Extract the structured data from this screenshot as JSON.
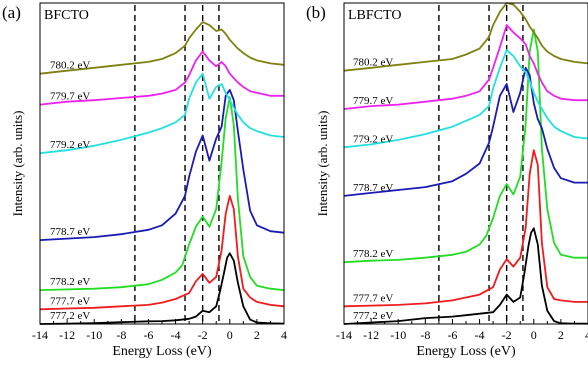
{
  "chart_data": [
    {
      "type": "line",
      "panel_letter": "(a)",
      "sample": "BFCTO",
      "xlabel": "Energy Loss (eV)",
      "ylabel": "Intensity (arb. units)",
      "xlim": [
        -14,
        4
      ],
      "xticks": [
        -14,
        -12,
        -10,
        -8,
        -6,
        -4,
        -2,
        0,
        2,
        4
      ],
      "grid": false,
      "dashed_lines_x": [
        -7.0,
        -3.3,
        -2.0,
        -0.8
      ],
      "series": [
        {
          "name": "777.2 eV",
          "color": "#000000",
          "baseline": 0.0,
          "x": [
            -14,
            -12,
            -10,
            -8,
            -6,
            -5,
            -4,
            -3,
            -2.5,
            -2,
            -1.5,
            -1,
            -0.7,
            -0.4,
            -0.2,
            0,
            0.3,
            0.6,
            1,
            1.5,
            2,
            3,
            4
          ],
          "y": [
            0,
            0.02,
            0.06,
            0.12,
            0.18,
            0.2,
            0.25,
            0.35,
            0.5,
            0.9,
            0.8,
            1.2,
            2.3,
            3.6,
            4.5,
            4.8,
            4.3,
            2.8,
            1.2,
            0.3,
            0.1,
            0.05,
            0.03
          ]
        },
        {
          "name": "777.7 eV",
          "color": "#ee1c1c",
          "baseline": 1.0,
          "x": [
            -14,
            -12,
            -10,
            -8,
            -6,
            -5,
            -4,
            -3,
            -2.5,
            -2,
            -1.5,
            -1,
            -0.6,
            -0.3,
            0,
            0.3,
            0.6,
            1,
            1.5,
            2,
            3,
            4
          ],
          "y": [
            0,
            0.05,
            0.1,
            0.2,
            0.3,
            0.45,
            0.7,
            1.1,
            1.9,
            2.4,
            1.8,
            2.2,
            4,
            6.5,
            7.7,
            6.8,
            3.6,
            1.4,
            0.8,
            0.5,
            0.3,
            0.2
          ]
        },
        {
          "name": "778.2 eV",
          "color": "#22dd22",
          "baseline": 2.0,
          "x": [
            -14,
            -12,
            -10,
            -8,
            -6,
            -5,
            -4,
            -3.5,
            -3,
            -2.5,
            -2,
            -1.5,
            -1,
            -0.6,
            -0.3,
            0,
            0.3,
            0.6,
            1,
            1.5,
            2,
            3,
            4
          ],
          "y": [
            0.3,
            0.35,
            0.4,
            0.5,
            0.7,
            1,
            1.5,
            2,
            3.4,
            4.6,
            5.3,
            4.6,
            5.8,
            9,
            12,
            13.4,
            11.5,
            6.5,
            2.6,
            1.2,
            0.6,
            0.4,
            0.3
          ]
        },
        {
          "name": "778.7 eV",
          "color": "#1a1ab4",
          "baseline": 5.7,
          "x": [
            -14,
            -12,
            -10,
            -8,
            -6,
            -5,
            -4,
            -3.3,
            -3,
            -2.5,
            -2,
            -1.5,
            -1,
            -0.6,
            -0.3,
            0,
            0.3,
            0.6,
            1,
            1.5,
            2,
            3,
            4
          ],
          "y": [
            0,
            0.1,
            0.2,
            0.4,
            0.7,
            1,
            1.8,
            3,
            4.3,
            6,
            7.1,
            5.4,
            6.9,
            7.7,
            9.8,
            10.2,
            9.5,
            7.4,
            4.8,
            2,
            1,
            0.6,
            0.5
          ]
        },
        {
          "name": "779.2 eV",
          "color": "#22e0e0",
          "baseline": 11.6,
          "x": [
            -14,
            -12,
            -10,
            -8,
            -6,
            -5,
            -4,
            -3.3,
            -3,
            -2.5,
            -2,
            -1.5,
            -1,
            -0.6,
            -0.3,
            0,
            0.3,
            0.6,
            1,
            1.5,
            2,
            3,
            4
          ],
          "y": [
            0,
            0.2,
            0.5,
            0.9,
            1.4,
            1.7,
            2.1,
            2.6,
            3.7,
            4.8,
            5.4,
            3.7,
            4.5,
            4.7,
            4.1,
            3.6,
            3.1,
            2.6,
            2.1,
            1.7,
            1.5,
            1.2,
            1.1
          ]
        },
        {
          "name": "779.7 eV",
          "color": "#ee22ee",
          "baseline": 14.9,
          "x": [
            -14,
            -12,
            -10,
            -8,
            -6,
            -5,
            -4,
            -3.3,
            -3,
            -2.5,
            -2,
            -1.5,
            -1,
            -0.6,
            -0.3,
            0,
            0.3,
            0.6,
            1,
            1.5,
            2,
            3,
            4
          ],
          "y": [
            0,
            0.2,
            0.3,
            0.45,
            0.6,
            0.75,
            1,
            1.5,
            2,
            3,
            3.6,
            3,
            2.6,
            2.9,
            2.6,
            2.1,
            1.8,
            1.5,
            1.2,
            0.9,
            0.8,
            0.6,
            0.6
          ]
        },
        {
          "name": "780.2 eV",
          "color": "#808010",
          "baseline": 17.0,
          "x": [
            -14,
            -12,
            -10,
            -8,
            -6,
            -5,
            -4,
            -3.3,
            -3,
            -2.5,
            -2,
            -1.5,
            -1,
            -0.6,
            -0.3,
            0,
            0.3,
            0.6,
            1,
            1.5,
            2,
            3,
            4
          ],
          "y": [
            0,
            0.2,
            0.4,
            0.6,
            0.8,
            1,
            1.4,
            1.9,
            2.4,
            3,
            3.5,
            3.3,
            2.9,
            3,
            2.7,
            2.3,
            2,
            1.7,
            1.4,
            1.1,
            0.9,
            0.7,
            0.6
          ]
        }
      ]
    },
    {
      "type": "line",
      "panel_letter": "(b)",
      "sample": "LBFCTO",
      "xlabel": "Energy Loss (eV)",
      "ylabel": "Intensity (arb. units)",
      "xlim": [
        -14,
        4
      ],
      "xticks": [
        -14,
        -12,
        -10,
        -8,
        -6,
        -4,
        -2,
        0,
        2,
        4
      ],
      "grid": false,
      "dashed_lines_x": [
        -7.0,
        -3.3,
        -2.0,
        -0.8
      ],
      "series": [
        {
          "name": "777.2 eV",
          "color": "#000000",
          "baseline": 0.0,
          "x": [
            -14,
            -12,
            -10,
            -8,
            -6,
            -5,
            -4,
            -3,
            -2.5,
            -2,
            -1.5,
            -1,
            -0.7,
            -0.4,
            -0.2,
            0,
            0.3,
            0.6,
            1,
            1.5,
            2,
            3,
            4
          ],
          "y": [
            0,
            0.1,
            0.2,
            0.4,
            0.5,
            0.6,
            0.7,
            0.8,
            1.3,
            2,
            1.5,
            1.8,
            3.4,
            5.3,
            6.2,
            6.5,
            5.4,
            2.6,
            0.9,
            0.2,
            0.05,
            0.03,
            0.02
          ]
        },
        {
          "name": "777.7 eV",
          "color": "#ee1c1c",
          "baseline": 1.2,
          "x": [
            -14,
            -12,
            -10,
            -8,
            -6,
            -5,
            -4,
            -3,
            -2.5,
            -2,
            -1.5,
            -1,
            -0.6,
            -0.3,
            0,
            0.3,
            0.6,
            1,
            1.5,
            2,
            3,
            4
          ],
          "y": [
            0,
            0.05,
            0.1,
            0.2,
            0.4,
            0.6,
            0.8,
            1.3,
            2.5,
            3.2,
            2.7,
            3.3,
            5.3,
            9,
            10.6,
            9.6,
            4.3,
            1.3,
            0.5,
            0.4,
            0.3,
            0.3
          ]
        },
        {
          "name": "778.2 eV",
          "color": "#22dd22",
          "baseline": 4.0,
          "x": [
            -14,
            -12,
            -10,
            -8,
            -6,
            -5,
            -4,
            -3.5,
            -3,
            -2.5,
            -2,
            -1.5,
            -1,
            -0.6,
            -0.3,
            0,
            0.3,
            0.6,
            1,
            1.5,
            2,
            3,
            4
          ],
          "y": [
            0.2,
            0.3,
            0.35,
            0.5,
            0.7,
            0.9,
            1.4,
            2,
            3.2,
            4.7,
            5.5,
            4.8,
            6,
            9.5,
            14.5,
            16,
            14.5,
            7.9,
            3.8,
            1.5,
            0.7,
            0.5,
            0.5
          ]
        },
        {
          "name": "778.7 eV",
          "color": "#1a1ab4",
          "baseline": 8.7,
          "x": [
            -14,
            -12,
            -10,
            -8,
            -6,
            -5,
            -4,
            -3.3,
            -3,
            -2.5,
            -2,
            -1.5,
            -1,
            -0.6,
            -0.3,
            0,
            0.3,
            0.6,
            1,
            1.5,
            2,
            3,
            4
          ],
          "y": [
            0,
            0.2,
            0.4,
            0.6,
            1,
            1.5,
            2.2,
            3.6,
            4.7,
            6.8,
            7.6,
            5.7,
            7,
            8.7,
            8.2,
            6.3,
            5.2,
            4.6,
            3.2,
            1.9,
            1.2,
            0.9,
            0.9
          ]
        },
        {
          "name": "779.2 eV",
          "color": "#22e0e0",
          "baseline": 12.0,
          "x": [
            -14,
            -12,
            -10,
            -8,
            -6,
            -5,
            -4,
            -3.3,
            -3,
            -2.5,
            -2,
            -1.5,
            -1,
            -0.6,
            -0.3,
            0,
            0.3,
            0.6,
            1,
            1.5,
            2,
            3,
            4
          ],
          "y": [
            0,
            0.2,
            0.5,
            0.9,
            1.4,
            1.8,
            2.2,
            2.8,
            4,
            5.4,
            6.6,
            6.2,
            5.5,
            5.1,
            4.5,
            3.7,
            3.1,
            2.6,
            2,
            1.4,
            1.1,
            0.7,
            0.6
          ]
        },
        {
          "name": "779.7 eV",
          "color": "#ee22ee",
          "baseline": 14.6,
          "x": [
            -14,
            -12,
            -10,
            -8,
            -6,
            -5,
            -4,
            -3.3,
            -3,
            -2.5,
            -2,
            -1.5,
            -1,
            -0.6,
            -0.3,
            0,
            0.3,
            0.6,
            1,
            1.5,
            2,
            3,
            4
          ],
          "y": [
            0,
            0.2,
            0.3,
            0.5,
            0.7,
            0.9,
            1.2,
            2,
            2.8,
            4.2,
            5.7,
            5.2,
            4.8,
            4.4,
            3.6,
            3.1,
            2.4,
            1.8,
            1.2,
            0.9,
            0.7,
            0.6,
            0.6
          ]
        },
        {
          "name": "780.2 eV",
          "color": "#808010",
          "baseline": 17.2,
          "x": [
            -14,
            -12,
            -10,
            -8,
            -6,
            -5,
            -4,
            -3.3,
            -3,
            -2.5,
            -2,
            -1.5,
            -1,
            -0.6,
            -0.3,
            0,
            0.3,
            0.6,
            1,
            1.5,
            2,
            3,
            4
          ],
          "y": [
            0,
            0.2,
            0.4,
            0.6,
            0.8,
            1.1,
            1.5,
            2.3,
            3.1,
            4,
            4.6,
            4.5,
            4,
            3.5,
            3,
            2.6,
            2.2,
            1.7,
            1.3,
            1,
            0.8,
            0.6,
            0.5
          ]
        }
      ]
    }
  ]
}
